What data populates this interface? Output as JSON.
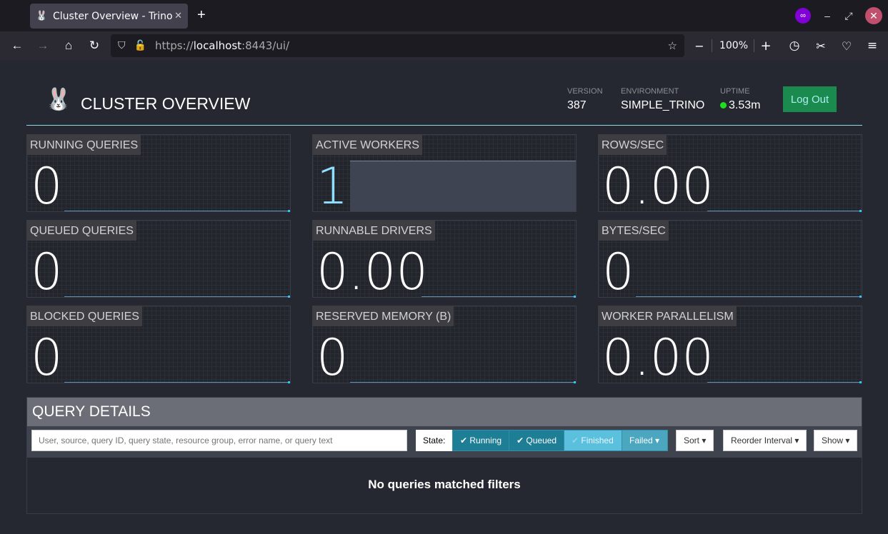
{
  "browser": {
    "tab_title": "Cluster Overview - Trino",
    "url_scheme": "https://",
    "url_host": "localhost",
    "url_rest": ":8443/ui/",
    "zoom": "100%"
  },
  "header": {
    "title": "CLUSTER OVERVIEW",
    "version_label": "VERSION",
    "version": "387",
    "environment_label": "ENVIRONMENT",
    "environment": "SIMPLE_TRINO",
    "uptime_label": "UPTIME",
    "uptime": "3.53m",
    "logout": "Log Out",
    "status_color": "#1fe01f"
  },
  "tiles": [
    {
      "label": "RUNNING QUERIES",
      "value": "0"
    },
    {
      "label": "ACTIVE WORKERS",
      "value": "1"
    },
    {
      "label": "ROWS/SEC",
      "value": "0.00"
    },
    {
      "label": "QUEUED QUERIES",
      "value": "0"
    },
    {
      "label": "RUNNABLE DRIVERS",
      "value": "0.00"
    },
    {
      "label": "BYTES/SEC",
      "value": "0"
    },
    {
      "label": "BLOCKED QUERIES",
      "value": "0"
    },
    {
      "label": "RESERVED MEMORY (B)",
      "value": "0"
    },
    {
      "label": "WORKER PARALLELISM",
      "value": "0.00"
    }
  ],
  "query_details": {
    "title": "QUERY DETAILS",
    "search_placeholder": "User, source, query ID, query state, resource group, error name, or query text",
    "state_label": "State:",
    "states": [
      {
        "label": "Running",
        "checked": true
      },
      {
        "label": "Queued",
        "checked": true
      },
      {
        "label": "Finished",
        "checked": false
      },
      {
        "label": "Failed ▾"
      }
    ],
    "sort": "Sort ▾",
    "reorder": "Reorder Interval ▾",
    "show": "Show ▾",
    "empty": "No queries matched filters"
  }
}
